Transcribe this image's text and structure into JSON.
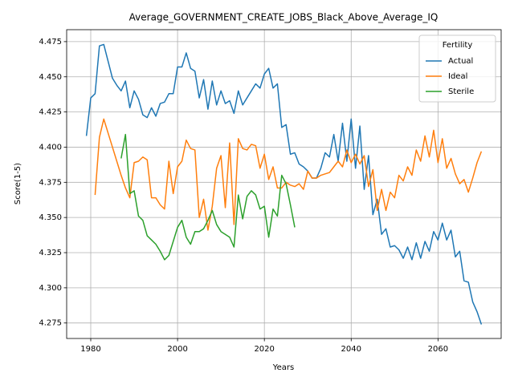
{
  "chart_data": {
    "type": "line",
    "title": "Average_GOVERNMENT_CREATE_JOBS_Black_Above_Average_IQ",
    "xlabel": "Years",
    "ylabel": "Score(1-5)",
    "legend_title": "Fertility",
    "legend": "upper right",
    "x": [
      1979,
      1980,
      1981,
      1982,
      1983,
      1984,
      1985,
      1986,
      1987,
      1988,
      1989,
      1990,
      1991,
      1992,
      1993,
      1994,
      1995,
      1996,
      1997,
      1998,
      1999,
      2000,
      2001,
      2002,
      2003,
      2004,
      2005,
      2006,
      2007,
      2008,
      2009,
      2010,
      2011,
      2012,
      2013,
      2014,
      2015,
      2016,
      2017,
      2018,
      2019,
      2020,
      2021,
      2022,
      2023,
      2024,
      2025,
      2026,
      2027,
      2028,
      2029,
      2030,
      2031,
      2032,
      2033,
      2034,
      2035,
      2036,
      2037,
      2038,
      2039,
      2040,
      2041,
      2042,
      2043,
      2044,
      2045,
      2046,
      2047,
      2048,
      2049,
      2050,
      2051,
      2052,
      2053,
      2054,
      2055,
      2056,
      2057,
      2058,
      2059,
      2060,
      2061,
      2062,
      2063,
      2064,
      2065,
      2066,
      2067,
      2068,
      2069,
      2070
    ],
    "series": [
      {
        "name": "Actual",
        "color": "#1f77b4",
        "values": [
          4.408,
          4.435,
          4.438,
          4.472,
          4.473,
          4.461,
          4.449,
          4.444,
          4.44,
          4.447,
          4.428,
          4.44,
          4.434,
          4.423,
          4.421,
          4.428,
          4.422,
          4.431,
          4.432,
          4.438,
          4.438,
          4.457,
          4.457,
          4.467,
          4.456,
          4.454,
          4.435,
          4.448,
          4.427,
          4.447,
          4.43,
          4.44,
          4.431,
          4.433,
          4.424,
          4.44,
          4.43,
          4.435,
          4.44,
          4.445,
          4.442,
          4.452,
          4.456,
          4.442,
          4.445,
          4.414,
          4.416,
          4.395,
          4.396,
          4.388,
          4.386,
          4.383,
          4.378,
          4.378,
          4.385,
          4.396,
          4.393,
          4.409,
          4.39,
          4.417,
          4.39,
          4.42,
          4.385,
          4.415,
          4.37,
          4.394,
          4.352,
          4.363,
          4.338,
          4.342,
          4.329,
          4.33,
          4.327,
          4.321,
          4.329,
          4.32,
          4.332,
          4.321,
          4.333,
          4.326,
          4.34,
          4.334,
          4.346,
          4.334,
          4.341,
          4.322,
          4.326,
          4.305,
          4.304,
          4.29,
          4.283,
          4.274
        ]
      },
      {
        "name": "Ideal",
        "color": "#ff7f0e",
        "values": [
          null,
          null,
          4.366,
          4.407,
          4.42,
          4.41,
          4.4,
          4.39,
          4.38,
          4.371,
          4.364,
          4.389,
          4.39,
          4.393,
          4.391,
          4.364,
          4.364,
          4.359,
          4.356,
          4.39,
          4.367,
          4.386,
          4.39,
          4.405,
          4.399,
          4.398,
          4.35,
          4.363,
          4.341,
          4.358,
          4.385,
          4.394,
          4.357,
          4.403,
          4.345,
          4.406,
          4.399,
          4.398,
          4.402,
          4.401,
          4.385,
          4.395,
          4.377,
          4.386,
          4.371,
          4.371,
          4.375,
          4.373,
          4.372,
          4.374,
          4.37,
          4.383,
          4.378,
          4.378,
          4.38,
          4.381,
          4.382,
          4.386,
          4.39,
          4.386,
          4.398,
          4.389,
          4.395,
          4.388,
          4.394,
          4.372,
          4.384,
          4.355,
          4.37,
          4.355,
          4.368,
          4.364,
          4.38,
          4.376,
          4.386,
          4.38,
          4.398,
          4.39,
          4.408,
          4.393,
          4.412,
          4.389,
          4.406,
          4.385,
          4.392,
          4.381,
          4.374,
          4.377,
          4.368,
          4.378,
          4.389,
          4.397
        ]
      },
      {
        "name": "Sterile",
        "color": "#2ca02c",
        "values": [
          null,
          null,
          null,
          null,
          null,
          null,
          null,
          null,
          4.392,
          4.409,
          4.367,
          4.369,
          4.351,
          4.348,
          4.337,
          4.334,
          4.331,
          4.326,
          4.32,
          4.323,
          4.333,
          4.343,
          4.348,
          4.336,
          4.331,
          4.34,
          4.34,
          4.342,
          4.348,
          4.355,
          4.345,
          4.34,
          4.338,
          4.336,
          4.329,
          4.366,
          4.349,
          4.365,
          4.369,
          4.366,
          4.356,
          4.358,
          4.336,
          4.356,
          4.351,
          4.38,
          4.374,
          4.359,
          4.343,
          null,
          null,
          null,
          null,
          null,
          null,
          null,
          null,
          null,
          null,
          null,
          null,
          null,
          null,
          null,
          null,
          null,
          null,
          null,
          null,
          null,
          null,
          null,
          null,
          null,
          null,
          null,
          null,
          null,
          null,
          null,
          null,
          null,
          null,
          null,
          null,
          null,
          null,
          null,
          null,
          null,
          null,
          null
        ]
      }
    ],
    "xlim": [
      1974.45,
      2074.55
    ],
    "xticks": [
      1980,
      2000,
      2020,
      2040,
      2060
    ],
    "ylim": [
      4.264,
      4.4835
    ],
    "yticks": [
      4.275,
      {
        "value": 4.3,
        "label": "4.300"
      },
      4.325,
      {
        "value": 4.35,
        "label": "4.350"
      },
      4.375,
      {
        "value": 4.4,
        "label": "4.400"
      },
      4.425,
      {
        "value": 4.45,
        "label": "4.450"
      },
      4.475
    ],
    "grid": true
  }
}
